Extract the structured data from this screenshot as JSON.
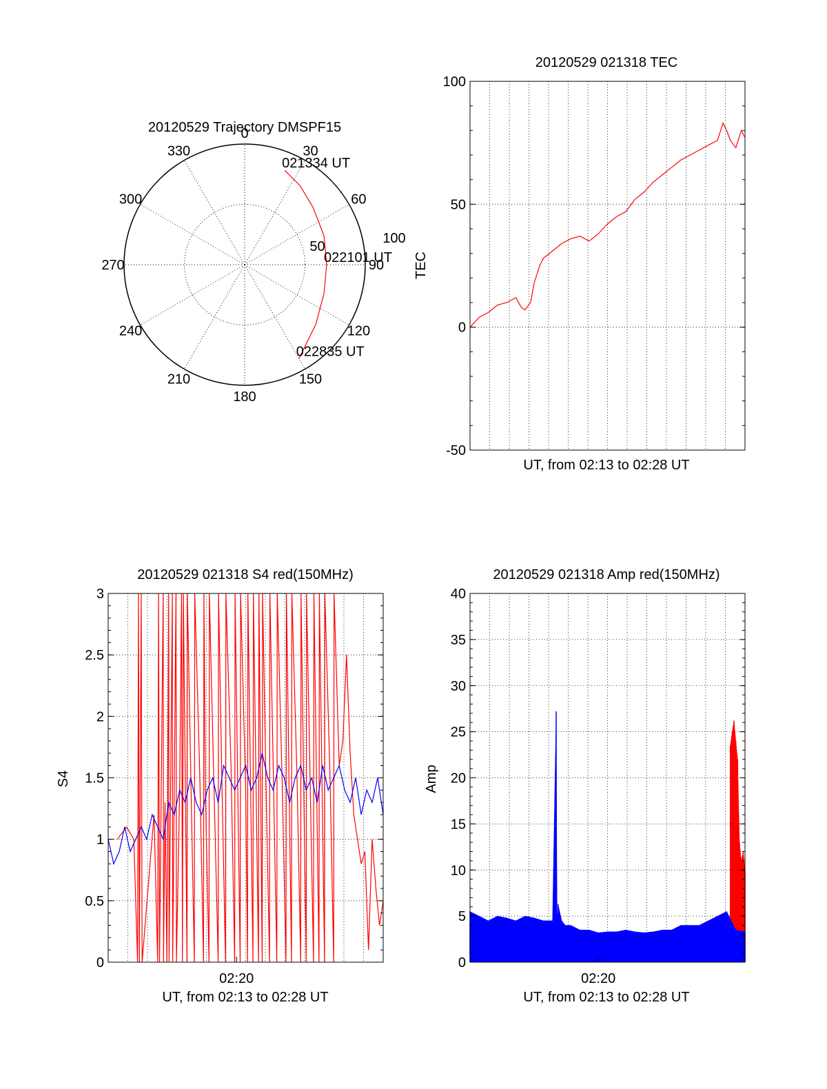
{
  "colors": {
    "red": "#ff0000",
    "blue": "#0000ff",
    "axis": "#000000",
    "grid": "#000000"
  },
  "chart_data": [
    {
      "id": "trajectory",
      "type": "polar",
      "title": "20120529 Trajectory DMSPF15",
      "angle_labels": [
        "0",
        "30",
        "60",
        "90",
        "120",
        "150",
        "180",
        "210",
        "240",
        "270",
        "300",
        "330"
      ],
      "radial_range": [
        0,
        100
      ],
      "radial_labels": [
        "50",
        "100"
      ],
      "trajectory": {
        "points": [
          {
            "az": 23,
            "r": 85
          },
          {
            "az": 35,
            "r": 80
          },
          {
            "az": 50,
            "r": 74
          },
          {
            "az": 70,
            "r": 70
          },
          {
            "az": 90,
            "r": 68
          },
          {
            "az": 110,
            "r": 70
          },
          {
            "az": 130,
            "r": 77
          },
          {
            "az": 150,
            "r": 90
          }
        ],
        "color": "red",
        "annotations": [
          {
            "text": "021334 UT",
            "az": 23,
            "r": 85
          },
          {
            "text": "022101 UT",
            "az": 90,
            "r": 68
          },
          {
            "text": "022835 UT",
            "az": 150,
            "r": 90
          }
        ]
      }
    },
    {
      "id": "tec",
      "type": "line",
      "title": "20120529 021318 TEC",
      "xlabel": "UT, from 02:13 to 02:28 UT",
      "ylabel": "TEC",
      "ylim": [
        -50,
        100
      ],
      "yticks": [
        "-50",
        "0",
        "50",
        "100"
      ],
      "x_range_minutes": [
        0,
        15
      ],
      "series": [
        {
          "color": "red",
          "x": [
            0,
            0.5,
            1,
            1.5,
            2,
            2.5,
            2.8,
            3,
            3.3,
            3.5,
            3.8,
            4,
            4.5,
            5,
            5.5,
            6,
            6.5,
            7,
            7.5,
            8,
            8.5,
            9,
            9.5,
            10,
            10.5,
            11,
            11.5,
            12,
            12.5,
            13,
            13.5,
            13.8,
            14,
            14.2,
            14.5,
            14.8,
            15
          ],
          "y": [
            0,
            4,
            6,
            9,
            10,
            12,
            8,
            7,
            10,
            18,
            25,
            28,
            31,
            34,
            36,
            37,
            35,
            38,
            42,
            45,
            47,
            52,
            55,
            59,
            62,
            65,
            68,
            70,
            72,
            74,
            76,
            83,
            80,
            76,
            73,
            80,
            77
          ]
        }
      ]
    },
    {
      "id": "s4",
      "type": "line",
      "title": "20120529 021318 S4 red(150MHz)",
      "xlabel": "UT, from 02:13 to 02:28 UT",
      "ylabel": "S4",
      "ylim": [
        0,
        3
      ],
      "yticks": [
        "0",
        "0.5",
        "1",
        "1.5",
        "2",
        "2.5",
        "3"
      ],
      "xticks": [
        "02:20"
      ],
      "xtick_minutes": [
        7
      ],
      "x_range_minutes": [
        0,
        15
      ],
      "series": [
        {
          "color": "red",
          "x": [
            0.5,
            1,
            1.4,
            1.6,
            1.65,
            1.7,
            1.8,
            1.85,
            2.5,
            2.7,
            2.75,
            2.8,
            3.0,
            3.02,
            3.1,
            3.2,
            3.3,
            3.32,
            3.5,
            3.52,
            3.7,
            3.72,
            3.9,
            4,
            4.05,
            4.1,
            4.3,
            4.32,
            4.7,
            4.72,
            5.0,
            5.2,
            5.22,
            5.3,
            5.5,
            5.52,
            6.0,
            6.02,
            6.2,
            6.4,
            6.42,
            6.7,
            6.9,
            6.92,
            7.2,
            7.22,
            7.5,
            7.6,
            7.62,
            7.9,
            7.92,
            8.2,
            8.22,
            8.4,
            8.42,
            8.6,
            8.8,
            8.82,
            9.0,
            9.2,
            9.22,
            9.5,
            9.7,
            9.72,
            10.0,
            10.02,
            10.3,
            10.5,
            10.52,
            10.8,
            10.82,
            11.0,
            11.2,
            11.22,
            11.5,
            11.52,
            11.8,
            11.82,
            12.1,
            12.3,
            12.32,
            12.6,
            12.8,
            13.0,
            13.2,
            13.4,
            13.6,
            13.8,
            14.0,
            14.2,
            14.4,
            14.6,
            14.8,
            15
          ],
          "y": [
            1.0,
            1.1,
            1.0,
            0,
            3,
            0,
            3,
            0,
            1.2,
            0,
            3,
            0,
            3,
            0,
            1.3,
            0,
            3,
            0,
            3,
            0,
            3,
            0,
            1.4,
            3,
            0,
            3,
            0,
            3,
            0,
            3,
            1.5,
            0,
            3,
            1.4,
            0,
            3,
            0,
            3,
            1.5,
            0,
            3,
            1.6,
            0,
            3,
            0,
            3,
            1.4,
            0,
            3,
            0,
            3,
            0,
            3,
            0,
            3,
            1.5,
            0,
            3,
            1.6,
            0,
            3,
            1.4,
            0,
            3,
            0,
            3,
            1.5,
            0,
            3,
            0,
            3,
            1.6,
            0,
            3,
            0,
            3,
            0,
            3,
            1.5,
            0,
            3,
            1.6,
            1.8,
            2.5,
            1.7,
            1.2,
            1.0,
            0.8,
            0.9,
            0.1,
            1.0,
            0.6,
            0.3,
            0.5
          ]
        },
        {
          "color": "blue",
          "x": [
            0,
            0.3,
            0.6,
            0.9,
            1.2,
            1.5,
            1.8,
            2.1,
            2.4,
            2.7,
            3.0,
            3.3,
            3.6,
            3.9,
            4.2,
            4.5,
            4.8,
            5.1,
            5.4,
            5.7,
            6.0,
            6.3,
            6.6,
            6.9,
            7.2,
            7.5,
            7.8,
            8.1,
            8.4,
            8.7,
            9.0,
            9.3,
            9.6,
            9.9,
            10.2,
            10.5,
            10.8,
            11.1,
            11.4,
            11.7,
            12.0,
            12.3,
            12.6,
            12.9,
            13.2,
            13.5,
            13.8,
            14.1,
            14.4,
            14.7,
            15
          ],
          "y": [
            1.0,
            0.8,
            0.9,
            1.1,
            0.9,
            1.0,
            1.1,
            1.0,
            1.2,
            1.1,
            1.0,
            1.3,
            1.2,
            1.4,
            1.3,
            1.5,
            1.3,
            1.2,
            1.4,
            1.5,
            1.3,
            1.6,
            1.5,
            1.4,
            1.5,
            1.6,
            1.4,
            1.5,
            1.7,
            1.5,
            1.4,
            1.6,
            1.5,
            1.3,
            1.5,
            1.6,
            1.4,
            1.5,
            1.3,
            1.6,
            1.4,
            1.5,
            1.6,
            1.4,
            1.3,
            1.5,
            1.2,
            1.4,
            1.3,
            1.5,
            1.2
          ]
        }
      ]
    },
    {
      "id": "amp",
      "type": "bar",
      "title": "20120529 021318 Amp red(150MHz)",
      "xlabel": "UT, from 02:13 to 02:28 UT",
      "ylabel": "Amp",
      "ylim": [
        0,
        40
      ],
      "yticks": [
        "0",
        "5",
        "10",
        "15",
        "20",
        "25",
        "30",
        "35",
        "40"
      ],
      "xticks": [
        "02:20"
      ],
      "xtick_minutes": [
        7
      ],
      "x_range_minutes": [
        0,
        15
      ],
      "series": [
        {
          "color": "red",
          "x": [
            14.2,
            14.3,
            14.4,
            14.5,
            14.6,
            14.7,
            14.8,
            14.9,
            15
          ],
          "y": [
            23.5,
            25,
            26.2,
            24,
            22,
            13,
            11,
            12,
            10
          ]
        },
        {
          "color": "blue",
          "x": [
            0,
            0.5,
            1,
            1.5,
            2,
            2.5,
            3,
            3.5,
            4,
            4.5,
            4.7,
            4.75,
            4.8,
            5.0,
            5.2,
            5.5,
            6,
            6.5,
            7,
            7.5,
            8,
            8.5,
            9,
            9.5,
            10,
            10.5,
            11,
            11.5,
            12,
            12.5,
            13,
            13.5,
            14,
            14.5,
            15
          ],
          "y": [
            5.5,
            5,
            4.5,
            5,
            4.8,
            4.5,
            5,
            4.8,
            4.5,
            4.5,
            27.2,
            4.5,
            6.3,
            4.5,
            4,
            4,
            3.5,
            3.5,
            3.2,
            3.3,
            3.3,
            3.5,
            3.3,
            3.2,
            3.3,
            3.5,
            3.5,
            4,
            4,
            4,
            4.5,
            5,
            5.5,
            3.5,
            3.3
          ]
        }
      ]
    }
  ]
}
